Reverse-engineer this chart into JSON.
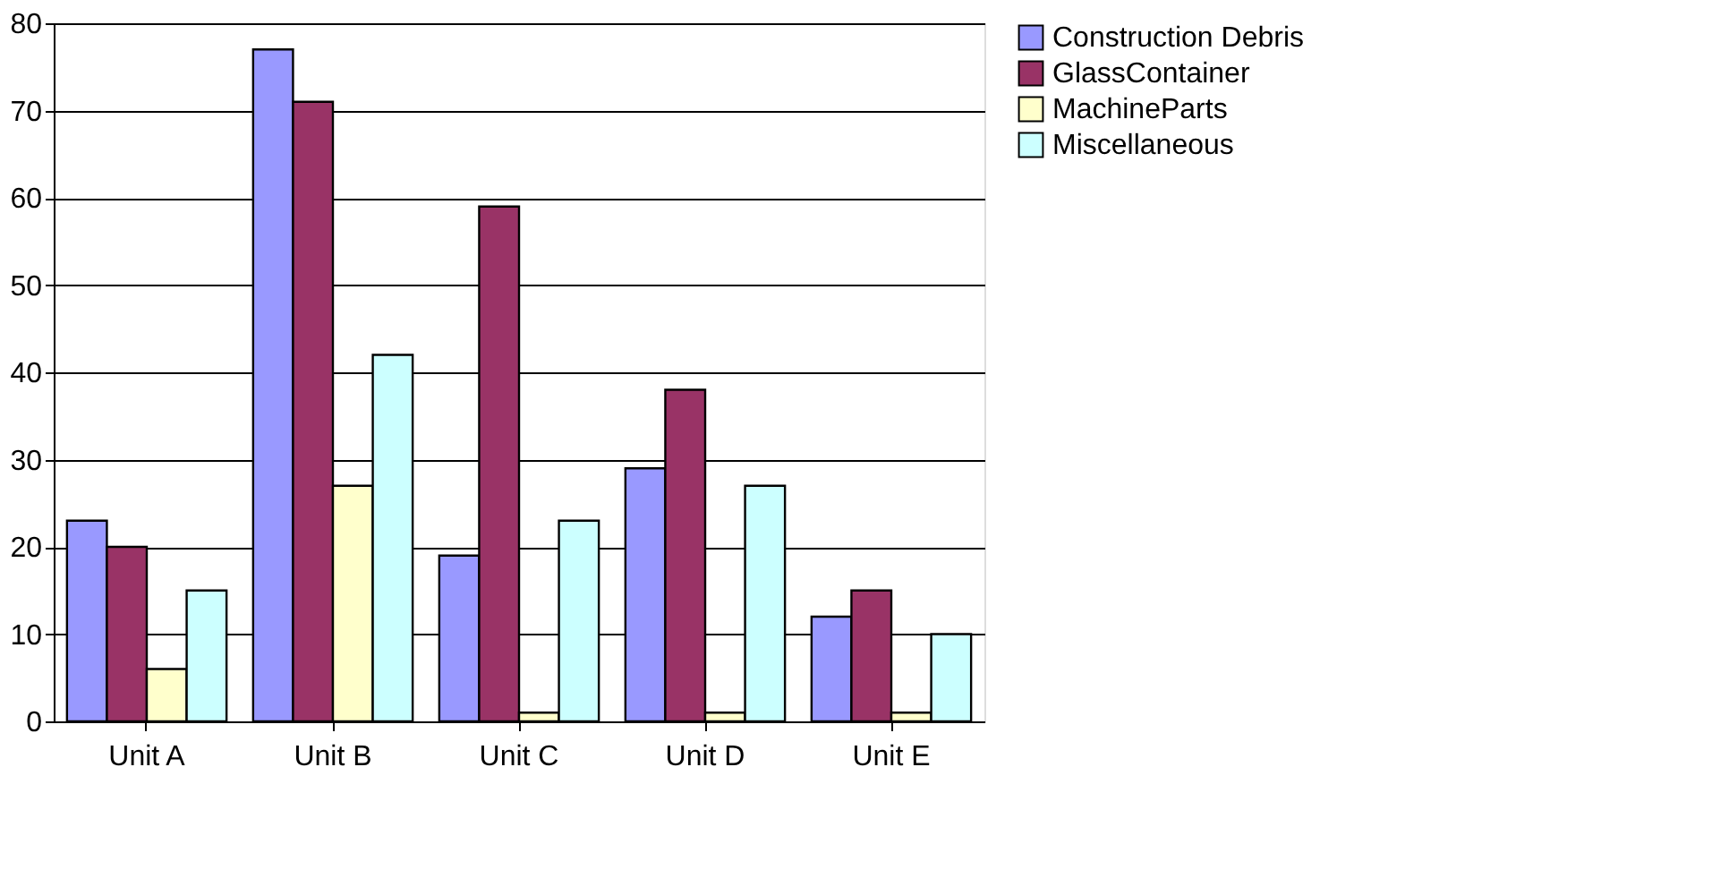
{
  "chart_data": {
    "type": "bar",
    "categories": [
      "Unit A",
      "Unit B",
      "Unit C",
      "Unit D",
      "Unit E"
    ],
    "series": [
      {
        "name": "Construction Debris",
        "color": "#9999ff",
        "values": [
          23,
          77,
          19,
          29,
          12
        ]
      },
      {
        "name": "GlassContainer",
        "color": "#993366",
        "values": [
          20,
          71,
          59,
          38,
          15
        ]
      },
      {
        "name": "MachineParts",
        "color": "#ffffcc",
        "values": [
          6,
          27,
          1,
          1,
          1
        ]
      },
      {
        "name": "Miscellaneous",
        "color": "#ccffff",
        "values": [
          15,
          42,
          23,
          27,
          10
        ]
      }
    ],
    "ylim": [
      0,
      80
    ],
    "yticks": [
      0,
      10,
      20,
      30,
      40,
      50,
      60,
      70,
      80
    ],
    "grid": "y",
    "legend": "right"
  }
}
